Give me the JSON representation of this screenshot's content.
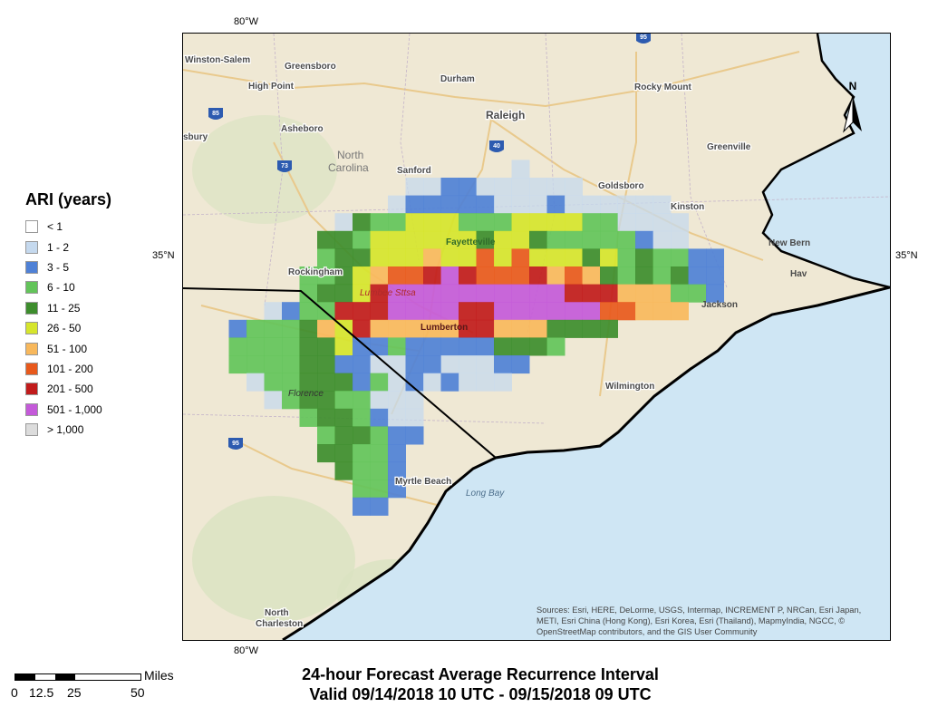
{
  "legend": {
    "title": "ARI (years)",
    "items": [
      {
        "label": "< 1",
        "color": "#ffffff"
      },
      {
        "label": "1 - 2",
        "color": "#c5d9ee"
      },
      {
        "label": "3 - 5",
        "color": "#4f81d6"
      },
      {
        "label": "6 - 10",
        "color": "#63c45a"
      },
      {
        "label": "11 - 25",
        "color": "#3d8d2d"
      },
      {
        "label": "26 - 50",
        "color": "#d6e52c"
      },
      {
        "label": "51 - 100",
        "color": "#f8b85c"
      },
      {
        "label": "101 - 200",
        "color": "#e8591c"
      },
      {
        "label": "201 - 500",
        "color": "#c11b1b"
      },
      {
        "label": "501 - 1,000",
        "color": "#c45ad9"
      },
      {
        "label": "> 1,000",
        "color": "#dcdcdc"
      }
    ]
  },
  "grid_labels": {
    "lon_top": "80°W",
    "lon_bottom": "80°W",
    "lat_left": "35°N",
    "lat_right": "35°N"
  },
  "cities": {
    "winston_salem": "Winston-Salem",
    "greensboro": "Greensboro",
    "durham": "Durham",
    "high_point": "High Point",
    "rocky_mount": "Rocky Mount",
    "raleigh": "Raleigh",
    "asheboro": "Asheboro",
    "sbury": "sbury",
    "north": "North",
    "carolina": "Carolina",
    "sanford": "Sanford",
    "greenville": "Greenville",
    "goldsboro": "Goldsboro",
    "kinston": "Kinston",
    "fayetteville": "Fayetteville",
    "new_bern": "New Bern",
    "havelock": "Hav",
    "rockingham": "Rockingham",
    "lumbee": "Lumbee Sttsa",
    "lumberton": "Lumberton",
    "jacksonville": "Jackson",
    "florence": "Florence",
    "wilmington": "Wilmington",
    "myrtle_beach": "Myrtle Beach",
    "long_bay": "Long Bay",
    "north_charleston_1": "North",
    "north_charleston_2": "Charleston"
  },
  "highways": [
    "85",
    "73",
    "40",
    "95",
    "95"
  ],
  "attribution": "Sources: Esri, HERE, DeLorme, USGS, Intermap, INCREMENT P, NRCan, Esri Japan, METI, Esri China (Hong Kong), Esri Korea, Esri (Thailand), MapmyIndia, NGCC, © OpenStreetMap contributors, and the GIS User Community",
  "north_arrow_label": "N",
  "scale": {
    "unit": "Miles",
    "ticks": [
      "0",
      "12.5",
      "25",
      "50"
    ]
  },
  "title": {
    "line1": "24-hour Forecast Average Recurrence Interval",
    "line2": "Valid 09/14/2018 10 UTC - 09/15/2018 09 UTC"
  }
}
